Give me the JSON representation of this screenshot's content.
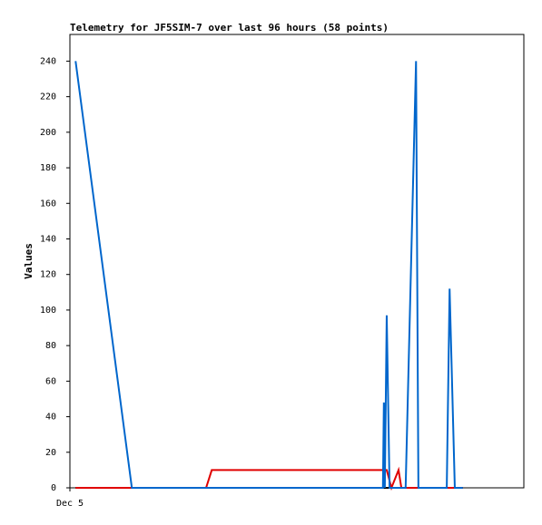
{
  "chart_data": {
    "type": "line",
    "title": "Telemetry for JF5SIM-7 over last 96 hours (58 points)",
    "y_label": "Values",
    "xlim": [
      0,
      96
    ],
    "xticks": [
      {
        "value": 0,
        "label": "Dec 5"
      }
    ],
    "ylim": [
      0,
      255
    ],
    "yticks": [
      0,
      20,
      40,
      60,
      80,
      100,
      120,
      140,
      160,
      180,
      200,
      220,
      240
    ],
    "series": [
      {
        "color": "#000000",
        "x": [
          1.2,
          83.1
        ],
        "values": [
          0,
          0
        ]
      },
      {
        "color": "#e00000",
        "x": [
          1.2,
          28.8,
          30.0,
          67.0,
          68.0,
          69.5,
          70.1,
          83.1
        ],
        "values": [
          0,
          0,
          10,
          10,
          0,
          10,
          0,
          0
        ]
      },
      {
        "color": "#0066cc",
        "x": [
          1.2,
          13.1,
          66.2,
          66.4,
          66.6,
          67.0,
          67.6,
          71.0,
          73.2,
          73.7,
          79.7,
          80.3,
          81.4,
          83.1
        ],
        "values": [
          240,
          0,
          0,
          48,
          0,
          97,
          0,
          0,
          240,
          0,
          0,
          112,
          0,
          0
        ]
      }
    ]
  }
}
